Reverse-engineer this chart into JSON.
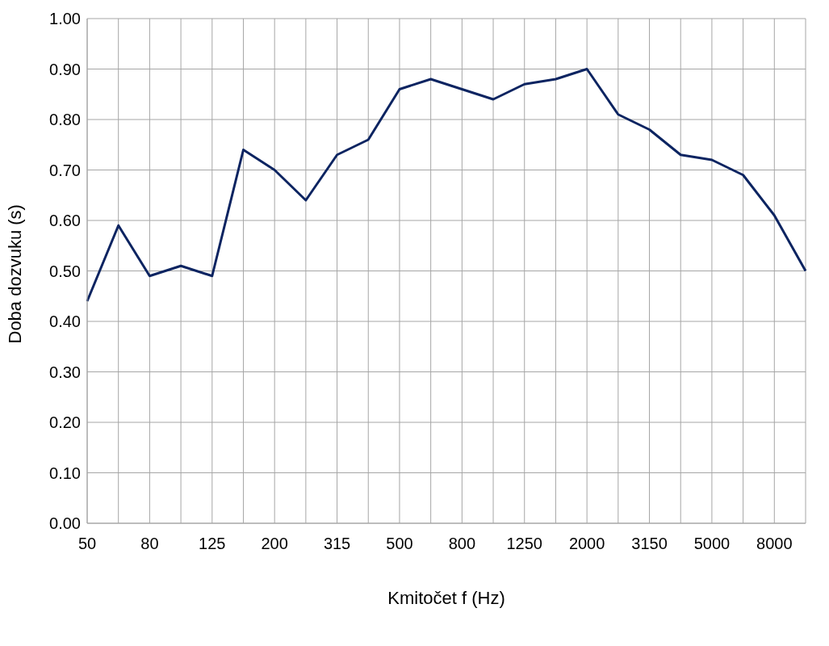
{
  "chart_data": {
    "type": "line",
    "xlabel": "Kmitočet f (Hz)",
    "ylabel": "Doba dozvuku (s)",
    "categories": [
      "50",
      null,
      "80",
      null,
      "125",
      null,
      "200",
      null,
      "315",
      null,
      "500",
      null,
      "800",
      null,
      "1250",
      null,
      "2000",
      null,
      "3150",
      null,
      "5000",
      null,
      "8000",
      null
    ],
    "series": [
      {
        "color": "#0c2461",
        "values": [
          0.44,
          0.59,
          0.49,
          0.51,
          0.49,
          0.74,
          0.7,
          0.64,
          0.73,
          0.76,
          0.86,
          0.88,
          0.86,
          0.84,
          0.87,
          0.88,
          0.9,
          0.81,
          0.78,
          0.73,
          0.72,
          0.69,
          0.61,
          0.5
        ]
      }
    ],
    "ylim": [
      0,
      1
    ],
    "yticks": [
      {
        "value": 0,
        "label": "0.00"
      },
      {
        "value": 0.1,
        "label": "0.10"
      },
      {
        "value": 0.2,
        "label": "0.20"
      },
      {
        "value": 0.3,
        "label": "0.30"
      },
      {
        "value": 0.4,
        "label": "0.40"
      },
      {
        "value": 0.5,
        "label": "0.50"
      },
      {
        "value": 0.6,
        "label": "0.60"
      },
      {
        "value": 0.7,
        "label": "0.70"
      },
      {
        "value": 0.8,
        "label": "0.80"
      },
      {
        "value": 0.9,
        "label": "0.90"
      },
      {
        "value": 1,
        "label": "1.00"
      }
    ],
    "grid": true,
    "legend": false,
    "marker": "none",
    "line_style": "solid"
  }
}
